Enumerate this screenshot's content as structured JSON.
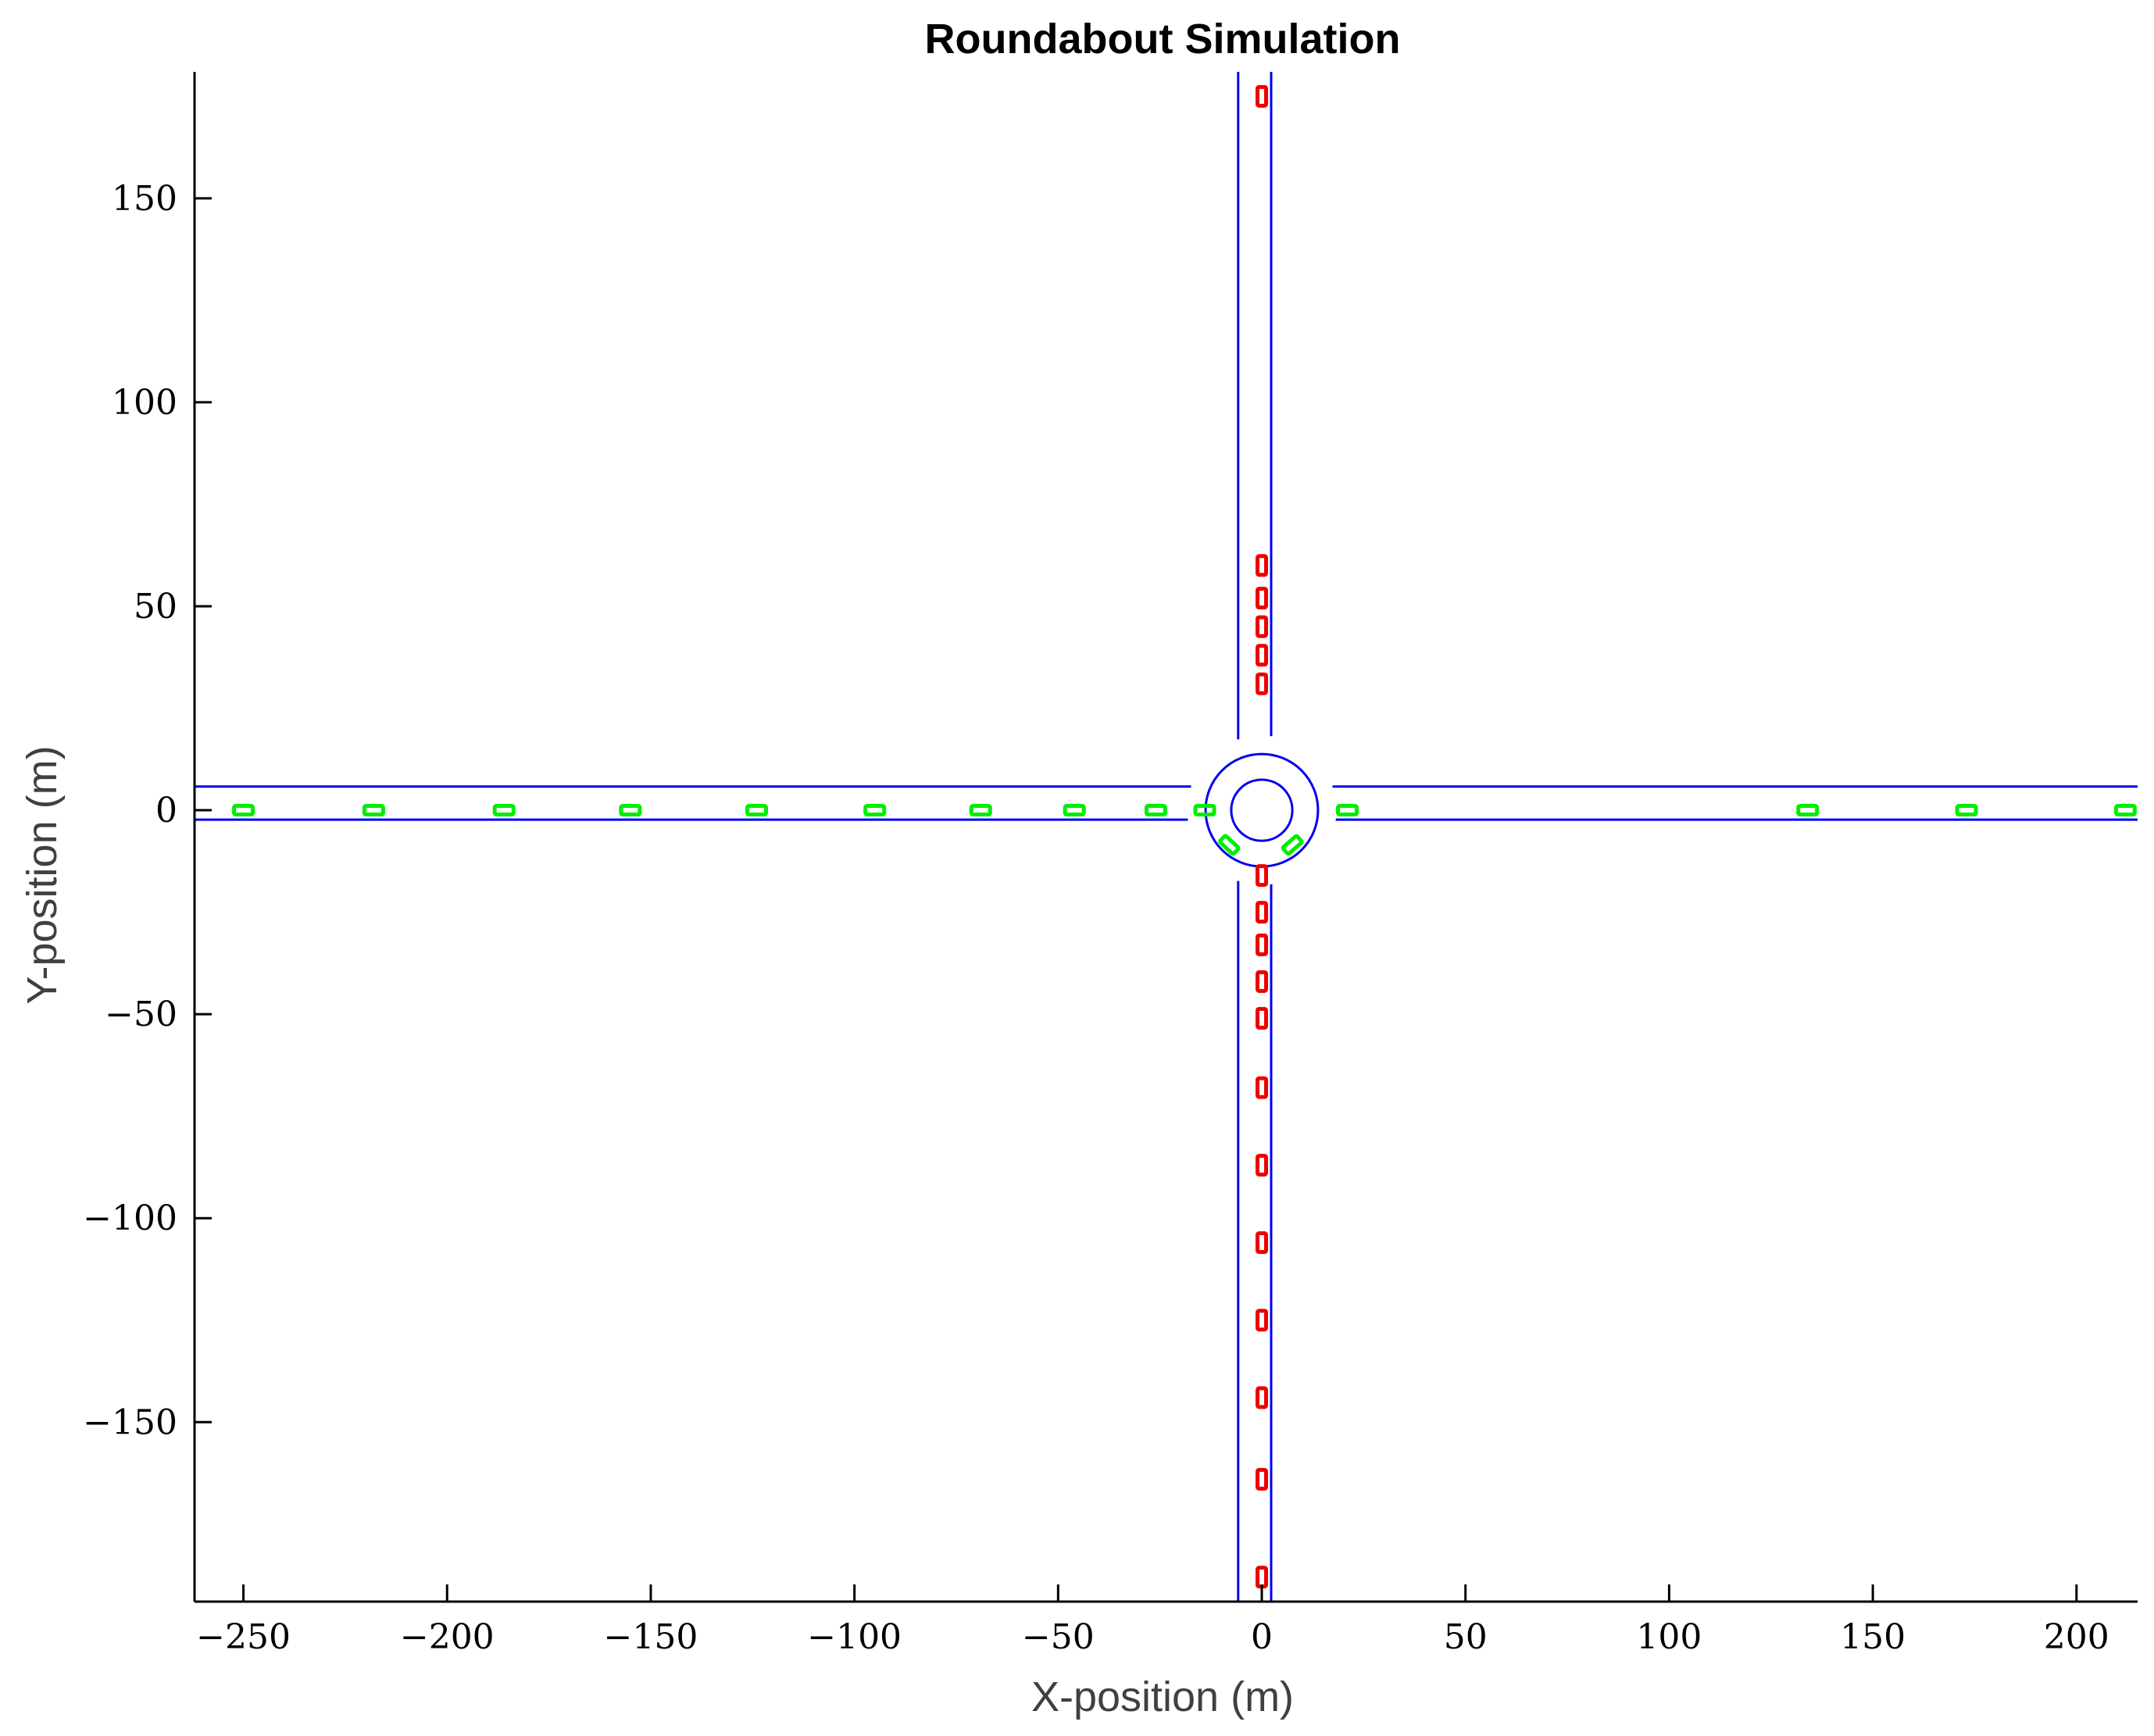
{
  "chart_data": {
    "type": "scatter",
    "title": "Roundabout Simulation",
    "xlabel": "X-position (m)",
    "ylabel": "Y-position (m)",
    "xlim": [
      -262,
      215
    ],
    "ylim": [
      -194,
      181
    ],
    "xticks": [
      -250,
      -200,
      -150,
      -100,
      -50,
      0,
      50,
      100,
      150,
      200
    ],
    "yticks": [
      -150,
      -100,
      -50,
      0,
      50,
      100,
      150
    ],
    "xtick_labels": [
      "−250",
      "−200",
      "−150",
      "−100",
      "−50",
      "0",
      "50",
      "100",
      "150",
      "200"
    ],
    "ytick_labels": [
      "−150",
      "−100",
      "−50",
      "0",
      "50",
      "100",
      "150"
    ],
    "grid": false,
    "colors": {
      "road": "#0000ee",
      "vehicle_ew": "#00ee00",
      "vehicle_ns": "#ee0000",
      "axis": "#000000"
    },
    "road": {
      "horizontal_edges_y": [
        5.8,
        -2.3
      ],
      "vertical_edges_x": [
        -5.8,
        2.3
      ],
      "roundabout_center": [
        0,
        0
      ],
      "outer_radius": 13.8,
      "inner_radius": 7.5
    },
    "series": [
      {
        "name": "",
        "color": "#00ee00",
        "orientation": "horizontal",
        "points": [
          [
            -250,
            0
          ],
          [
            -218,
            0
          ],
          [
            -186,
            0
          ],
          [
            -155,
            0
          ],
          [
            -124,
            0
          ],
          [
            -95,
            0
          ],
          [
            -69,
            0
          ],
          [
            -46,
            0
          ],
          [
            -26,
            0
          ],
          [
            -14,
            0
          ],
          [
            21,
            0
          ],
          [
            134,
            0
          ],
          [
            173,
            0
          ],
          [
            212,
            0
          ],
          [
            -8,
            -8.5
          ],
          [
            7.5,
            -8.5
          ]
        ]
      },
      {
        "name": "",
        "color": "#ee0000",
        "orientation": "vertical",
        "points": [
          [
            0,
            175
          ],
          [
            0,
            60
          ],
          [
            0,
            52
          ],
          [
            0,
            45
          ],
          [
            0,
            38
          ],
          [
            0,
            31
          ],
          [
            0,
            -16
          ],
          [
            0,
            -25
          ],
          [
            0,
            -33
          ],
          [
            0,
            -42
          ],
          [
            0,
            -51
          ],
          [
            0,
            -68
          ],
          [
            0,
            -87
          ],
          [
            0,
            -106
          ],
          [
            0,
            -125
          ],
          [
            0,
            -144
          ],
          [
            0,
            -164
          ],
          [
            0,
            -188
          ]
        ]
      }
    ]
  }
}
